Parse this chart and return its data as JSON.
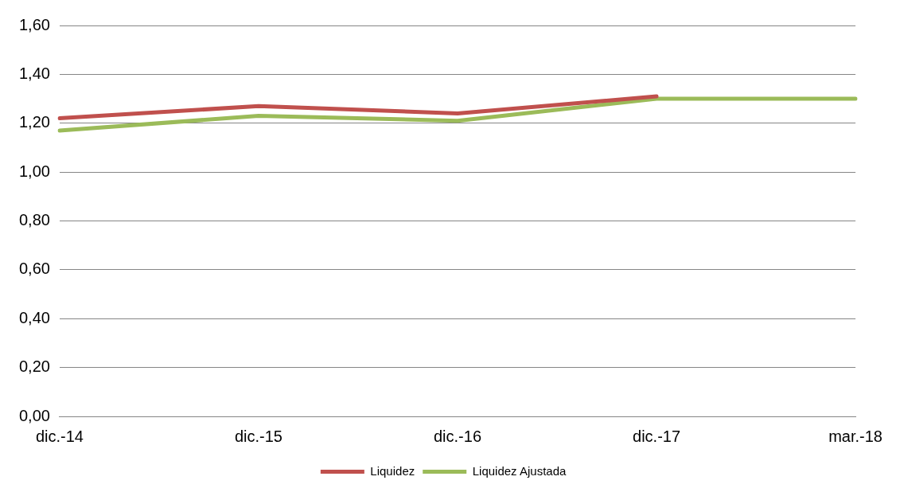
{
  "chart_data": {
    "type": "line",
    "categories": [
      "dic.-14",
      "dic.-15",
      "dic.-16",
      "dic.-17",
      "mar.-18"
    ],
    "series": [
      {
        "name": "Liquidez",
        "color": "#c0504d",
        "values": [
          1.22,
          1.27,
          1.24,
          1.31,
          null
        ]
      },
      {
        "name": "Liquidez Ajustada",
        "color": "#9bbb59",
        "values": [
          1.17,
          1.23,
          1.21,
          1.3,
          1.3
        ]
      }
    ],
    "ylim": [
      0,
      1.6
    ],
    "yticks": [
      {
        "value": 0,
        "label": "0,00"
      },
      {
        "value": 0.2,
        "label": "0,20"
      },
      {
        "value": 0.4,
        "label": "0,40"
      },
      {
        "value": 0.6,
        "label": "0,60"
      },
      {
        "value": 0.8,
        "label": "0,80"
      },
      {
        "value": 1.0,
        "label": "1,00"
      },
      {
        "value": 1.2,
        "label": "1,20"
      },
      {
        "value": 1.4,
        "label": "1,40"
      },
      {
        "value": 1.6,
        "label": "1,60"
      }
    ],
    "grid": "y",
    "legend": "bottom",
    "marker": "none"
  }
}
